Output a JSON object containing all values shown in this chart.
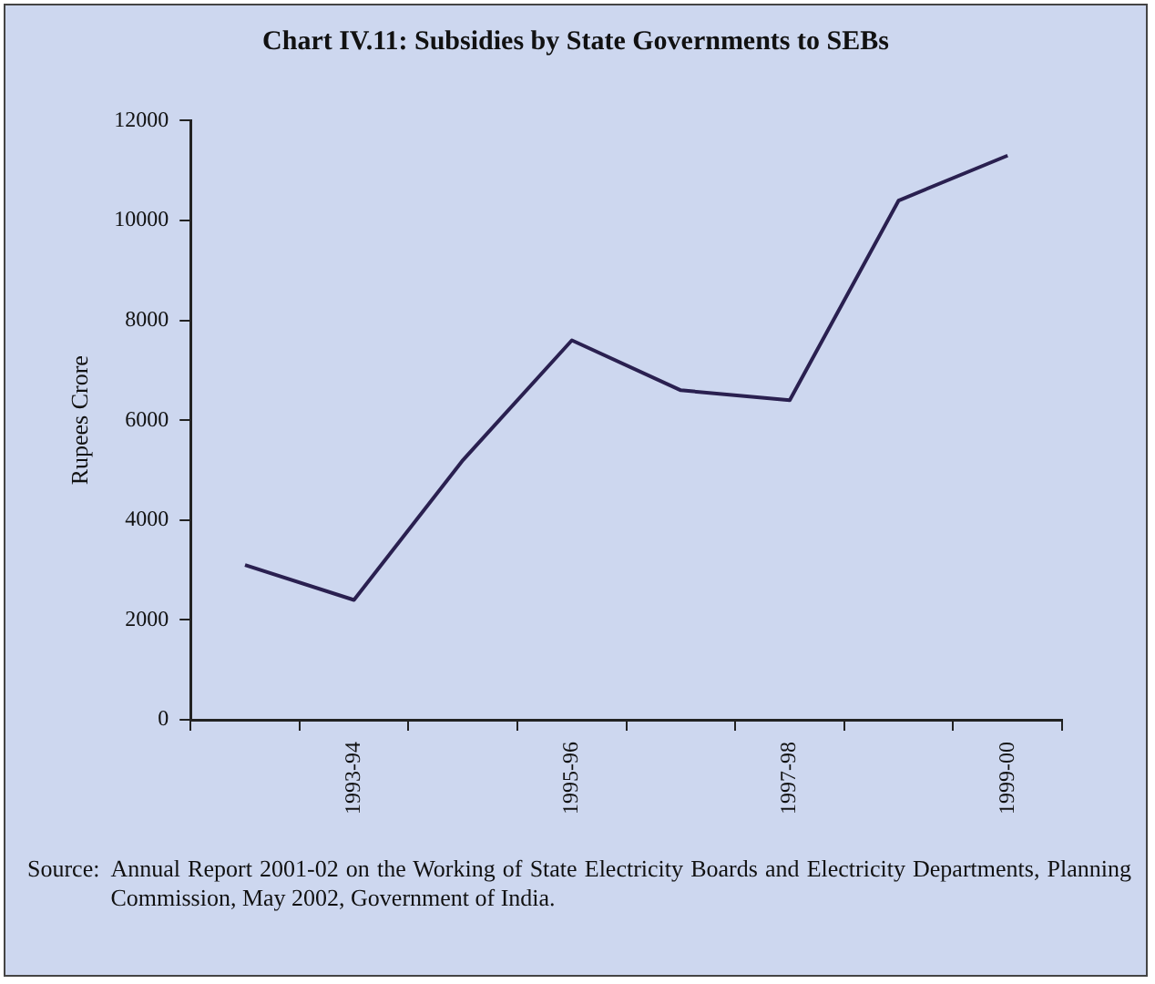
{
  "chart_data": {
    "type": "line",
    "title": "Chart IV.11: Subsidies by State Governments to SEBs",
    "ylabel": "Rupees Crore",
    "categories": [
      null,
      "1993-94",
      null,
      "1995-96",
      null,
      "1997-98",
      null,
      "1999-00"
    ],
    "series": [
      {
        "color": "#2a2050",
        "values": [
          3100,
          2400,
          5200,
          7600,
          6600,
          6400,
          10400,
          11300
        ]
      }
    ],
    "ylim": [
      0,
      12000
    ],
    "yticks": [
      0,
      2000,
      4000,
      6000,
      8000,
      10000,
      12000
    ],
    "grid": false,
    "legend": false,
    "marker": "none",
    "line_style": "solid",
    "annotations": [
      "Source: Annual Report 2001-02 on the Working of State Electricity Boards and Electricity Departments, Planning Commission, May 2002, Government of India."
    ]
  }
}
